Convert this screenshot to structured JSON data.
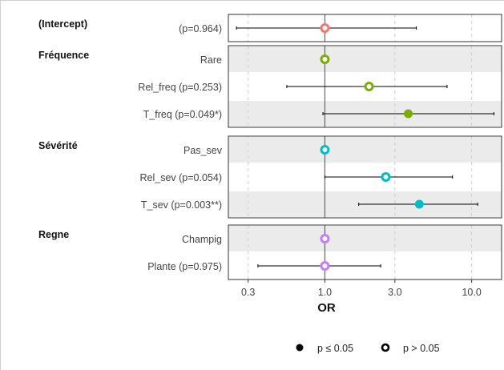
{
  "chart_data": {
    "type": "forest",
    "xlabel": "OR",
    "x_scale": "log",
    "x_ticks": [
      {
        "value": 0.3,
        "label": "0.3"
      },
      {
        "value": 1.0,
        "label": "1.0"
      },
      {
        "value": 3.0,
        "label": "3.0"
      },
      {
        "value": 10.0,
        "label": "10.0"
      }
    ],
    "xlim": [
      0.22,
      16
    ],
    "reference_line": 1.0,
    "groups": [
      {
        "name": "(Intercept)",
        "rows": [
          {
            "label": "(p=0.964)",
            "or": 1.0,
            "ci": [
              0.25,
              4.2
            ],
            "significant": false,
            "color": "#F8766D"
          }
        ]
      },
      {
        "name": "Fréquence",
        "rows": [
          {
            "label": "Rare",
            "or": 1.0,
            "ci": null,
            "significant": false,
            "color": "#7CAE00"
          },
          {
            "label": "Rel_freq (p=0.253)",
            "or": 2.0,
            "ci": [
              0.55,
              6.8
            ],
            "significant": false,
            "color": "#7CAE00"
          },
          {
            "label": "T_freq (p=0.049*)",
            "or": 3.7,
            "ci": [
              0.97,
              14.2
            ],
            "significant": true,
            "color": "#7CAE00"
          }
        ]
      },
      {
        "name": "Sévérité",
        "rows": [
          {
            "label": "Pas_sev",
            "or": 1.0,
            "ci": null,
            "significant": false,
            "color": "#00BFC4"
          },
          {
            "label": "Rel_sev (p=0.054)",
            "or": 2.6,
            "ci": [
              1.0,
              7.4
            ],
            "significant": false,
            "color": "#00BFC4"
          },
          {
            "label": "T_sev (p=0.003**)",
            "or": 4.4,
            "ci": [
              1.7,
              11.0
            ],
            "significant": true,
            "color": "#00BFC4"
          }
        ]
      },
      {
        "name": "Regne",
        "rows": [
          {
            "label": "Champig",
            "or": 1.0,
            "ci": null,
            "significant": false,
            "color": "#C77CFF"
          },
          {
            "label": "Plante (p=0.975)",
            "or": 1.0,
            "ci": [
              0.35,
              2.4
            ],
            "significant": false,
            "color": "#C77CFF"
          }
        ]
      }
    ],
    "legend": {
      "placement": "bottom",
      "entries": [
        {
          "label": "p ≤ 0.05",
          "marker": "filled"
        },
        {
          "label": "p > 0.05",
          "marker": "open"
        }
      ]
    },
    "grid": true,
    "colors": {
      "band": "#ebebeb",
      "panel_border": "#333333",
      "reference_line": "#666666",
      "grid_line": "#cfcfcf",
      "whisker": "#000000"
    }
  }
}
